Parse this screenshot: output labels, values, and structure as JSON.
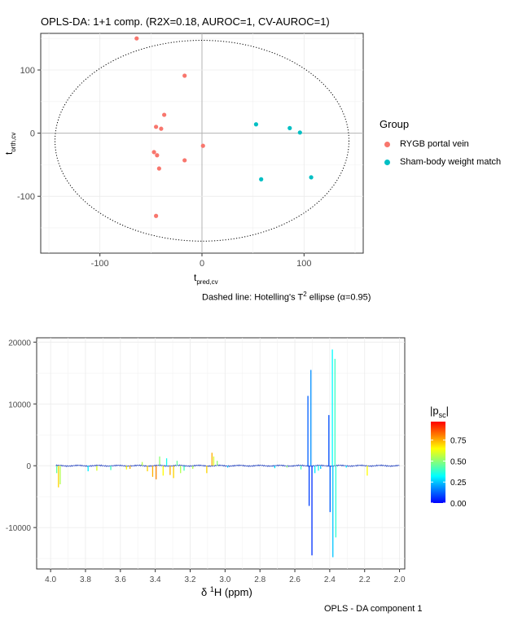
{
  "chart_data": [
    {
      "type": "scatter",
      "title": "OPLS-DA: 1+1 comp. (R2X=0.18, AUROC=1, CV-AUROC=1)",
      "xlabel": "t",
      "xlabel_sub": "pred,cv",
      "ylabel": "t",
      "ylabel_sub": "orth,cv",
      "x_ticks": [
        "-100",
        "0",
        "100"
      ],
      "y_ticks": [
        "100",
        "0",
        "-100"
      ],
      "xlim": [
        -158,
        158
      ],
      "ylim": [
        -190,
        158
      ],
      "grid": true,
      "legend_position": "right",
      "legend": {
        "title": "Group",
        "items": [
          {
            "label": "RYGB portal vein",
            "color": "#F8766D"
          },
          {
            "label": "Sham-body weight match",
            "color": "#00BFC4"
          }
        ]
      },
      "ellipse": {
        "style": "dotted",
        "center": [
          0,
          -12
        ],
        "semi_axes": [
          144,
          159
        ]
      },
      "caption": {
        "prefix": "Dashed line: Hotelling's T",
        "sup": "2",
        "suffix": " ellipse (α=0.95)"
      },
      "series": [
        {
          "name": "RYGB portal vein",
          "color": "#F8766D",
          "points": [
            [
              -64,
              150
            ],
            [
              -17,
              91
            ],
            [
              -37,
              29
            ],
            [
              -45,
              10
            ],
            [
              -40,
              7
            ],
            [
              1,
              -20
            ],
            [
              -47,
              -30
            ],
            [
              -44,
              -35
            ],
            [
              -17,
              -43
            ],
            [
              -42,
              -56
            ],
            [
              -45,
              -131
            ]
          ]
        },
        {
          "name": "Sham-body weight match",
          "color": "#00BFC4",
          "points": [
            [
              53,
              14
            ],
            [
              86,
              8
            ],
            [
              96,
              1
            ],
            [
              58,
              -73
            ],
            [
              107,
              -70
            ]
          ]
        }
      ]
    },
    {
      "type": "line",
      "title": "",
      "xlabel": "δ ",
      "xlabel_sup": "1",
      "xlabel_suffix": "H (ppm)",
      "ylabel": "",
      "x_ticks": [
        "4.0",
        "3.8",
        "3.6",
        "3.4",
        "3.2",
        "3.0",
        "2.8",
        "2.6",
        "2.4",
        "2.2",
        "2.0"
      ],
      "y_ticks": [
        "20000",
        "10000",
        "0",
        "-10000"
      ],
      "xlim": [
        4.08,
        1.97
      ],
      "ylim": [
        -16700,
        20700
      ],
      "x_reversed": true,
      "grid": true,
      "color_scale": {
        "title": "|p",
        "title_sub": "sc",
        "title_suffix": "|",
        "ticks": [
          "0.75",
          "0.50",
          "0.25",
          "0.00"
        ],
        "colors": [
          "#0000FF",
          "#0080FF",
          "#00FFFF",
          "#80FF80",
          "#FFFF00",
          "#FF8000",
          "#FF0000"
        ]
      },
      "caption": "OPLS - DA component 1",
      "peaks": [
        {
          "ppm": 3.955,
          "value": -3500,
          "level": 0.7
        },
        {
          "ppm": 3.945,
          "value": -3000,
          "level": 0.55
        },
        {
          "ppm": 3.965,
          "value": -1200,
          "level": 0.45
        },
        {
          "ppm": 3.785,
          "value": -900,
          "level": 0.3
        },
        {
          "ppm": 3.735,
          "value": -800,
          "level": 0.6
        },
        {
          "ppm": 3.655,
          "value": -700,
          "level": 0.4
        },
        {
          "ppm": 3.565,
          "value": -600,
          "level": 0.65
        },
        {
          "ppm": 3.545,
          "value": -500,
          "level": 0.75
        },
        {
          "ppm": 3.475,
          "value": 600,
          "level": 0.55
        },
        {
          "ppm": 3.445,
          "value": -900,
          "level": 0.7
        },
        {
          "ppm": 3.415,
          "value": -1800,
          "level": 0.75
        },
        {
          "ppm": 3.395,
          "value": -2200,
          "level": 0.8
        },
        {
          "ppm": 3.375,
          "value": 1500,
          "level": 0.5
        },
        {
          "ppm": 3.355,
          "value": -1600,
          "level": 0.65
        },
        {
          "ppm": 3.335,
          "value": 1200,
          "level": 0.35
        },
        {
          "ppm": 3.315,
          "value": -1500,
          "level": 0.75
        },
        {
          "ppm": 3.295,
          "value": -2000,
          "level": 0.7
        },
        {
          "ppm": 3.275,
          "value": 800,
          "level": 0.45
        },
        {
          "ppm": 3.255,
          "value": -1200,
          "level": 0.55
        },
        {
          "ppm": 3.235,
          "value": -800,
          "level": 0.4
        },
        {
          "ppm": 3.185,
          "value": -500,
          "level": 0.55
        },
        {
          "ppm": 3.105,
          "value": -1200,
          "level": 0.7
        },
        {
          "ppm": 3.075,
          "value": 2100,
          "level": 0.75
        },
        {
          "ppm": 3.065,
          "value": 1500,
          "level": 0.6
        },
        {
          "ppm": 3.045,
          "value": 800,
          "level": 0.5
        },
        {
          "ppm": 2.985,
          "value": -300,
          "level": 0.25
        },
        {
          "ppm": 2.715,
          "value": -400,
          "level": 0.3
        },
        {
          "ppm": 2.645,
          "value": -300,
          "level": 0.5
        },
        {
          "ppm": 2.565,
          "value": -600,
          "level": 0.4
        },
        {
          "ppm": 2.525,
          "value": 11300,
          "level": 0.12
        },
        {
          "ppm": 2.518,
          "value": -6500,
          "level": 0.08
        },
        {
          "ppm": 2.508,
          "value": 15500,
          "level": 0.18
        },
        {
          "ppm": 2.502,
          "value": -14500,
          "level": 0.06
        },
        {
          "ppm": 2.485,
          "value": -1200,
          "level": 0.3
        },
        {
          "ppm": 2.465,
          "value": -800,
          "level": 0.35
        },
        {
          "ppm": 2.452,
          "value": -500,
          "level": 0.25
        },
        {
          "ppm": 2.405,
          "value": 8200,
          "level": 0.1
        },
        {
          "ppm": 2.398,
          "value": -7500,
          "level": 0.12
        },
        {
          "ppm": 2.385,
          "value": 18800,
          "level": 0.32
        },
        {
          "ppm": 2.382,
          "value": -14800,
          "level": 0.25
        },
        {
          "ppm": 2.37,
          "value": 17300,
          "level": 0.4
        },
        {
          "ppm": 2.365,
          "value": -11600,
          "level": 0.38
        },
        {
          "ppm": 2.185,
          "value": -1600,
          "level": 0.65
        },
        {
          "ppm": 2.305,
          "value": -300,
          "level": 0.3
        }
      ]
    }
  ]
}
